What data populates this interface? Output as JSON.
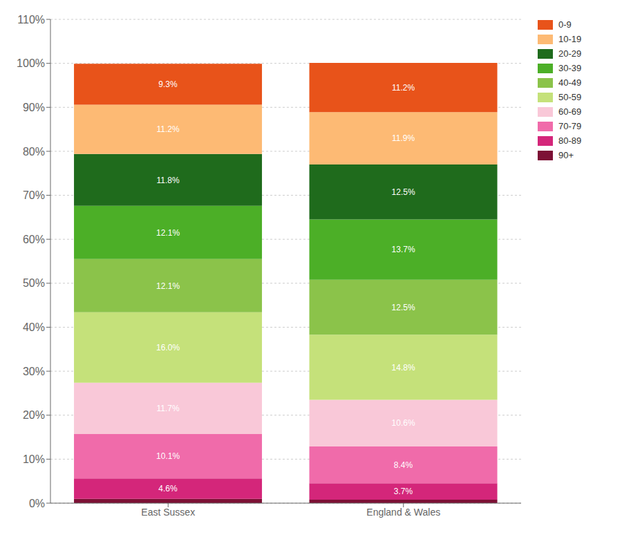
{
  "chart_data": {
    "type": "bar",
    "stacked": true,
    "categories": [
      "East Sussex",
      "England & Wales"
    ],
    "series": [
      {
        "name": "90+",
        "color": "#7D1035",
        "values": [
          1.0,
          0.8
        ],
        "data_labels": false
      },
      {
        "name": "80-89",
        "color": "#D4267A",
        "values": [
          4.6,
          3.7
        ],
        "value_labels": [
          "4.6%",
          "3.7%"
        ]
      },
      {
        "name": "70-79",
        "color": "#F06BAA",
        "values": [
          10.1,
          8.4
        ],
        "value_labels": [
          "10.1%",
          "8.4%"
        ]
      },
      {
        "name": "60-69",
        "color": "#F9C8D8",
        "values": [
          11.7,
          10.6
        ],
        "value_labels": [
          "11.7%",
          "10.6%"
        ]
      },
      {
        "name": "50-59",
        "color": "#C5E17A",
        "values": [
          16.0,
          14.8
        ],
        "value_labels": [
          "16.0%",
          "14.8%"
        ]
      },
      {
        "name": "40-49",
        "color": "#8BC34A",
        "values": [
          12.1,
          12.5
        ],
        "value_labels": [
          "12.1%",
          "12.5%"
        ]
      },
      {
        "name": "30-39",
        "color": "#4CAF27",
        "values": [
          12.1,
          13.7
        ],
        "value_labels": [
          "12.1%",
          "13.7%"
        ]
      },
      {
        "name": "20-29",
        "color": "#1F6B1C",
        "values": [
          11.8,
          12.5
        ],
        "value_labels": [
          "11.8%",
          "12.5%"
        ]
      },
      {
        "name": "10-19",
        "color": "#FDBA74",
        "values": [
          11.2,
          11.9
        ],
        "value_labels": [
          "11.2%",
          "11.9%"
        ]
      },
      {
        "name": "0-9",
        "color": "#E8531A",
        "values": [
          9.3,
          11.2
        ],
        "value_labels": [
          "9.3%",
          "11.2%"
        ]
      }
    ],
    "ylim": [
      0,
      110
    ],
    "yticks": [
      {
        "value": 0,
        "label": "0%"
      },
      {
        "value": 10,
        "label": "10%"
      },
      {
        "value": 20,
        "label": "20%"
      },
      {
        "value": 30,
        "label": "30%"
      },
      {
        "value": 40,
        "label": "40%"
      },
      {
        "value": 50,
        "label": "50%"
      },
      {
        "value": 60,
        "label": "60%"
      },
      {
        "value": 70,
        "label": "70%"
      },
      {
        "value": 80,
        "label": "80%"
      },
      {
        "value": 90,
        "label": "90%"
      },
      {
        "value": 100,
        "label": "100%"
      },
      {
        "value": 110,
        "label": "110%"
      }
    ],
    "grid": true,
    "legend": "right",
    "data_labels": true
  }
}
